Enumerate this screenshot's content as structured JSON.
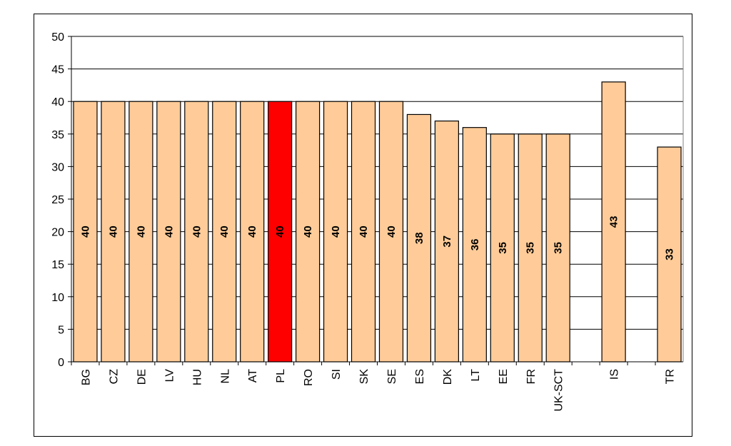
{
  "chart_data": {
    "type": "bar",
    "title": "",
    "xlabel": "",
    "ylabel": "",
    "ylim": [
      0,
      50
    ],
    "yticks": [
      0,
      5,
      10,
      15,
      20,
      25,
      30,
      35,
      40,
      45,
      50
    ],
    "grid": true,
    "legend": "none",
    "categories": [
      "BG",
      "CZ",
      "DE",
      "LV",
      "HU",
      "NL",
      "AT",
      "PL",
      "RO",
      "SI",
      "SK",
      "SE",
      "ES",
      "DK",
      "LT",
      "EE",
      "FR",
      "UK-SCT",
      "",
      "IS",
      "",
      "TR"
    ],
    "values": [
      40,
      40,
      40,
      40,
      40,
      40,
      40,
      40,
      40,
      40,
      40,
      40,
      38,
      37,
      36,
      35,
      35,
      35,
      null,
      43,
      null,
      33
    ],
    "data_labels": [
      "40",
      "40",
      "40",
      "40",
      "40",
      "40",
      "40",
      "40",
      "40",
      "40",
      "40",
      "40",
      "38",
      "37",
      "36",
      "35",
      "35",
      "35",
      "",
      "43",
      "",
      "33"
    ],
    "highlight_category": "PL",
    "colors": {
      "bar": "#FFCC99",
      "highlight": "#FF0000",
      "bar_edge": "#000000",
      "grid": "#000000"
    }
  }
}
